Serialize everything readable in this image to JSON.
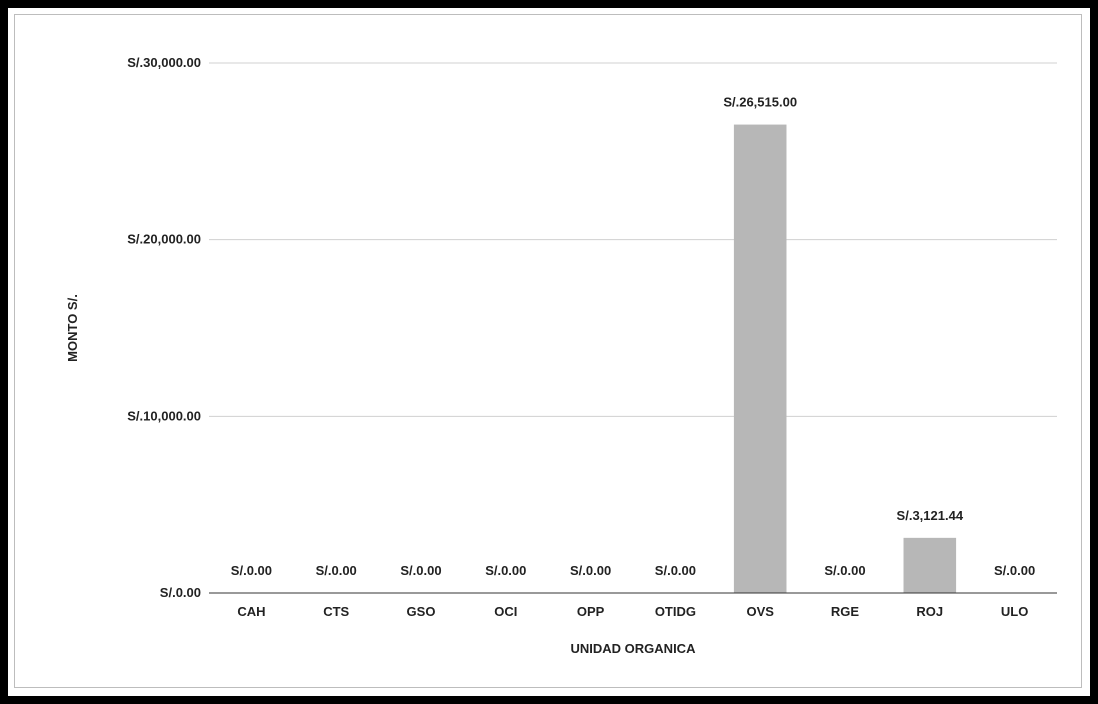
{
  "chart_data": {
    "type": "bar",
    "title": "",
    "xlabel": "UNIDAD ORGANICA",
    "ylabel": "MONTO S/.",
    "categories": [
      "CAH",
      "CTS",
      "GSO",
      "OCI",
      "OPP",
      "OTIDG",
      "OVS",
      "RGE",
      "ROJ",
      "ULO"
    ],
    "values": [
      0,
      0,
      0,
      0,
      0,
      0,
      26515,
      0,
      3121.44,
      0
    ],
    "data_labels": [
      "S/.0.00",
      "S/.0.00",
      "S/.0.00",
      "S/.0.00",
      "S/.0.00",
      "S/.0.00",
      "S/.26,515.00",
      "S/.0.00",
      "S/.3,121.44",
      "S/.0.00"
    ],
    "ylim": [
      0,
      30000
    ],
    "yticks": [
      0,
      10000,
      20000,
      30000
    ],
    "ytick_labels": [
      "S/.0.00",
      "S/.10,000.00",
      "S/.20,000.00",
      "S/.30,000.00"
    ],
    "grid": true,
    "legend": "none",
    "bar_color": "#b7b7b7",
    "grid_color": "#d0d0d0"
  }
}
